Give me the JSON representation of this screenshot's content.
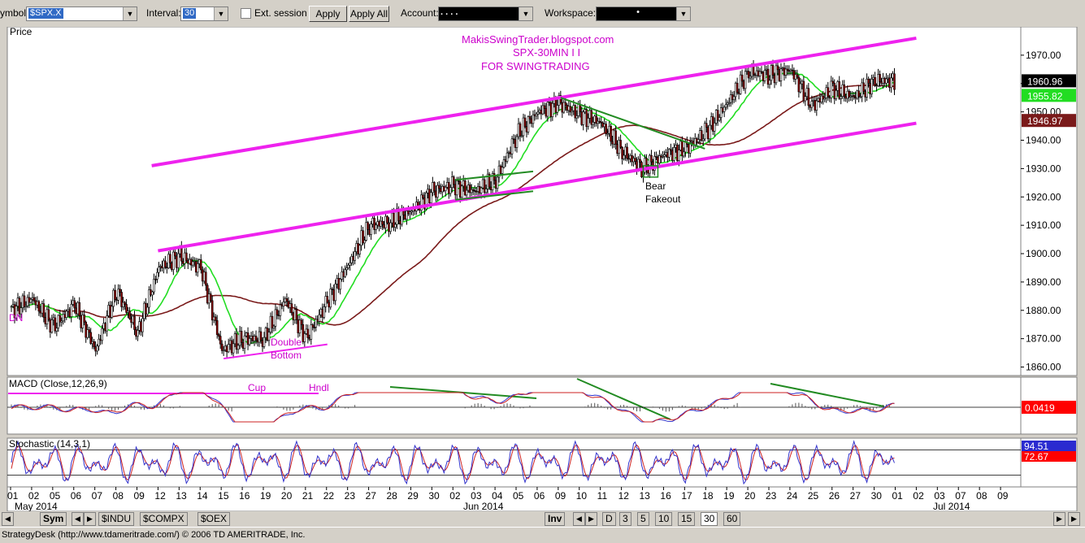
{
  "toolbar": {
    "symbol_label": "ymbol:",
    "symbol_value": "$SPX.X",
    "interval_label": "Interval:",
    "interval_value": "30",
    "ext_session_label": "Ext. session",
    "apply_label": "Apply",
    "apply_all_label": "Apply All",
    "account_label": "Account:",
    "account_value": ".  .  .  .",
    "workspace_label": "Workspace:",
    "workspace_value": "•"
  },
  "bottom": {
    "left_tabs": [
      "Sym",
      "$INDU",
      "$COMPX",
      "$OEX"
    ],
    "inv_label": "Inv",
    "period_tabs": [
      "D",
      "3",
      "5",
      "10",
      "15",
      "30",
      "60"
    ]
  },
  "status_text": "StrategyDesk (http://www.tdameritrade.com/) © 2006 TD AMERITRADE, Inc.",
  "colors": {
    "channel": "#ee22ee",
    "ma_fast": "#22dd22",
    "ma_slow": "#7a1a1a",
    "candle_up": "#ffffff",
    "candle_down": "#8b0000",
    "trendline": "#228b22",
    "macd": "#3333cc",
    "signal": "#cc2222",
    "annotation": "#cc00cc"
  },
  "chart_data": {
    "type": "candlestick",
    "price_panel_title": "Price",
    "annotations": [
      "MakisSwingTrader.blogspot.com",
      "SPX-30MIN  I I",
      "FOR SWINGTRADING"
    ],
    "notes": [
      {
        "text": "Double\nBottom",
        "color": "#cc00cc"
      },
      {
        "text": "Bear\nFakeout",
        "color": "#000000"
      },
      {
        "text": "Cup",
        "color": "#cc00cc"
      },
      {
        "text": "Hndl",
        "color": "#cc00cc"
      },
      {
        "text": "DN",
        "color": "#cc00cc"
      }
    ],
    "y_ticks": [
      "1970.00",
      "1960.00",
      "1950.00",
      "1940.00",
      "1930.00",
      "1920.00",
      "1910.00",
      "1900.00",
      "1890.00",
      "1880.00",
      "1870.00",
      "1860.00"
    ],
    "ylim": [
      1857,
      1980
    ],
    "last_price": "1960.96",
    "ma_fast_last": "1955.82",
    "ma_slow_last": "1946.97",
    "x_ticks": [
      "01",
      "02",
      "05",
      "06",
      "07",
      "08",
      "09",
      "12",
      "13",
      "14",
      "15",
      "16",
      "19",
      "20",
      "21",
      "22",
      "23",
      "27",
      "28",
      "29",
      "30",
      "02",
      "03",
      "04",
      "05",
      "06",
      "09",
      "10",
      "11",
      "12",
      "13",
      "16",
      "17",
      "18",
      "19",
      "20",
      "23",
      "24",
      "25",
      "26",
      "27",
      "30",
      "01",
      "02",
      "03",
      "07",
      "08",
      "09"
    ],
    "month_labels": [
      "May 2014",
      "Jun 2014",
      "Jul 2014"
    ],
    "close_path": [
      {
        "d": "05-01",
        "v": 1880
      },
      {
        "d": "05-02",
        "v": 1884
      },
      {
        "d": "05-05",
        "v": 1874
      },
      {
        "d": "05-06",
        "v": 1882
      },
      {
        "d": "05-07",
        "v": 1866
      },
      {
        "d": "05-08",
        "v": 1887
      },
      {
        "d": "05-09",
        "v": 1872
      },
      {
        "d": "05-12",
        "v": 1895
      },
      {
        "d": "05-13",
        "v": 1899
      },
      {
        "d": "05-14",
        "v": 1895
      },
      {
        "d": "05-15",
        "v": 1866
      },
      {
        "d": "05-16",
        "v": 1870
      },
      {
        "d": "05-19",
        "v": 1870
      },
      {
        "d": "05-20",
        "v": 1884
      },
      {
        "d": "05-21",
        "v": 1870
      },
      {
        "d": "05-22",
        "v": 1883
      },
      {
        "d": "05-23",
        "v": 1896
      },
      {
        "d": "05-27",
        "v": 1910
      },
      {
        "d": "05-28",
        "v": 1911
      },
      {
        "d": "05-29",
        "v": 1915
      },
      {
        "d": "05-30",
        "v": 1922
      },
      {
        "d": "06-02",
        "v": 1924
      },
      {
        "d": "06-03",
        "v": 1922
      },
      {
        "d": "06-04",
        "v": 1926
      },
      {
        "d": "06-05",
        "v": 1942
      },
      {
        "d": "06-06",
        "v": 1950
      },
      {
        "d": "06-09",
        "v": 1953
      },
      {
        "d": "06-10",
        "v": 1949
      },
      {
        "d": "06-11",
        "v": 1946
      },
      {
        "d": "06-12",
        "v": 1936
      },
      {
        "d": "06-13",
        "v": 1930
      },
      {
        "d": "06-16",
        "v": 1935
      },
      {
        "d": "06-17",
        "v": 1937
      },
      {
        "d": "06-18",
        "v": 1943
      },
      {
        "d": "06-19",
        "v": 1953
      },
      {
        "d": "06-20",
        "v": 1964
      },
      {
        "d": "06-23",
        "v": 1963
      },
      {
        "d": "06-24",
        "v": 1965
      },
      {
        "d": "06-25",
        "v": 1952
      },
      {
        "d": "06-26",
        "v": 1958
      },
      {
        "d": "06-27",
        "v": 1955
      },
      {
        "d": "06-30",
        "v": 1961
      }
    ],
    "macd": {
      "title": "MACD (Close,12,26,9)",
      "value": "0.0419"
    },
    "stochastic": {
      "title": "Stochastic (14,3,1)",
      "k": "94.51",
      "d": "72.67"
    }
  }
}
